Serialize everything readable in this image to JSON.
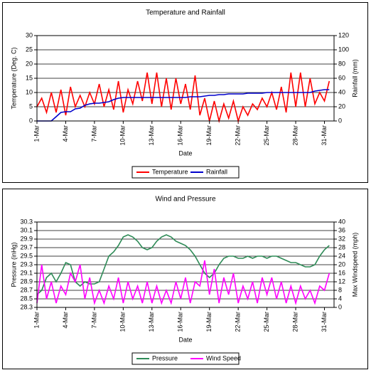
{
  "chart_data": [
    {
      "type": "line",
      "title": "Temperature and Rainfall",
      "x_label": "Date",
      "y_label": "Temperature (Deg. C)",
      "y2_label": "Rainfall (mm)",
      "x": [
        1,
        1.5,
        2,
        2.5,
        3,
        3.5,
        4,
        4.5,
        5,
        5.5,
        6,
        6.5,
        7,
        7.5,
        8,
        8.5,
        9,
        9.5,
        10,
        10.5,
        11,
        11.5,
        12,
        12.5,
        13,
        13.5,
        14,
        14.5,
        15,
        15.5,
        16,
        16.5,
        17,
        17.5,
        18,
        18.5,
        19,
        19.5,
        20,
        20.5,
        21,
        21.5,
        22,
        22.5,
        23,
        23.5,
        24,
        24.5,
        25,
        25.5,
        26,
        26.5,
        27,
        27.5,
        28,
        28.5,
        29,
        29.5,
        30,
        30.5,
        31,
        31.5
      ],
      "xlim": [
        1,
        32
      ],
      "xticks": [
        {
          "value": 1,
          "label": "1-Mar"
        },
        {
          "value": 4,
          "label": "4-Mar"
        },
        {
          "value": 7,
          "label": "7-Mar"
        },
        {
          "value": 10,
          "label": "10-Mar"
        },
        {
          "value": 13,
          "label": "13-Mar"
        },
        {
          "value": 16,
          "label": "16-Mar"
        },
        {
          "value": 19,
          "label": "19-Mar"
        },
        {
          "value": 22,
          "label": "22-Mar"
        },
        {
          "value": 25,
          "label": "25-Mar"
        },
        {
          "value": 28,
          "label": "28-Mar"
        },
        {
          "value": 31,
          "label": "31-Mar"
        }
      ],
      "ylim": [
        0,
        30
      ],
      "yticks": [
        0,
        5,
        10,
        15,
        20,
        25,
        30
      ],
      "y2lim": [
        0,
        120
      ],
      "y2ticks": [
        0,
        20,
        40,
        60,
        80,
        100,
        120
      ],
      "grid": true,
      "legend": "bottom",
      "series": [
        {
          "name": "Temperature",
          "color": "#ff0000",
          "axis": "y",
          "values": [
            5,
            8,
            3,
            10,
            3,
            11,
            2,
            12,
            5,
            9,
            5,
            10,
            6,
            13,
            5,
            11,
            4,
            14,
            3,
            11,
            6,
            14,
            7,
            17,
            6,
            17,
            5,
            15,
            4,
            15,
            6,
            13,
            4,
            16,
            2,
            8,
            0,
            7,
            0,
            6,
            1,
            7,
            0,
            5,
            2,
            6,
            4,
            8,
            5,
            10,
            4,
            12,
            3,
            17,
            5,
            17,
            5,
            15,
            6,
            10,
            7,
            14
          ]
        },
        {
          "name": "Rainfall",
          "color": "#0000cc",
          "axis": "y2",
          "values": [
            0,
            0,
            0,
            0,
            6,
            12,
            13,
            13,
            17,
            18,
            22,
            24,
            25,
            25,
            26,
            27,
            30,
            32,
            33,
            33,
            33,
            33,
            33,
            33,
            33,
            33,
            33,
            33,
            33,
            33,
            33,
            33,
            34,
            34,
            34,
            35,
            36,
            36,
            37,
            37,
            38,
            38,
            38,
            38,
            39,
            39,
            39,
            39,
            40,
            40,
            40,
            40,
            40,
            40,
            40,
            40,
            40,
            40,
            42,
            43,
            44,
            44
          ]
        }
      ]
    },
    {
      "type": "line",
      "title": "Wind and Pressure",
      "x_label": "Date",
      "y_label": "Pressure (inHg)",
      "y2_label": "Max Windspeed (mph)",
      "x": [
        1,
        1.5,
        2,
        2.5,
        3,
        3.5,
        4,
        4.5,
        5,
        5.5,
        6,
        6.5,
        7,
        7.5,
        8,
        8.5,
        9,
        9.5,
        10,
        10.5,
        11,
        11.5,
        12,
        12.5,
        13,
        13.5,
        14,
        14.5,
        15,
        15.5,
        16,
        16.5,
        17,
        17.5,
        18,
        18.5,
        19,
        19.5,
        20,
        20.5,
        21,
        21.5,
        22,
        22.5,
        23,
        23.5,
        24,
        24.5,
        25,
        25.5,
        26,
        26.5,
        27,
        27.5,
        28,
        28.5,
        29,
        29.5,
        30,
        30.5,
        31,
        31.5
      ],
      "xlim": [
        1,
        32
      ],
      "xticks": [
        {
          "value": 1,
          "label": "1-Mar"
        },
        {
          "value": 4,
          "label": "4-Mar"
        },
        {
          "value": 7,
          "label": "7-Mar"
        },
        {
          "value": 10,
          "label": "10-Mar"
        },
        {
          "value": 13,
          "label": "13-Mar"
        },
        {
          "value": 16,
          "label": "16-Mar"
        },
        {
          "value": 19,
          "label": "19-Mar"
        },
        {
          "value": 22,
          "label": "22-Mar"
        },
        {
          "value": 25,
          "label": "25-Mar"
        },
        {
          "value": 28,
          "label": "28-Mar"
        },
        {
          "value": 31,
          "label": "31-Mar"
        }
      ],
      "ylim": [
        28.3,
        30.3
      ],
      "yticks": [
        28.3,
        28.5,
        28.7,
        28.9,
        29.1,
        29.3,
        29.5,
        29.7,
        29.9,
        30.1,
        30.3
      ],
      "y2lim": [
        0,
        40
      ],
      "y2ticks": [
        0,
        4,
        8,
        12,
        16,
        20,
        24,
        28,
        32,
        36,
        40
      ],
      "grid": true,
      "legend": "bottom",
      "series": [
        {
          "name": "Pressure",
          "color": "#2e8b57",
          "axis": "y",
          "values": [
            28.6,
            28.7,
            29.0,
            29.1,
            28.9,
            29.1,
            29.35,
            29.3,
            28.9,
            28.8,
            28.9,
            28.85,
            28.85,
            28.9,
            29.2,
            29.5,
            29.6,
            29.75,
            29.95,
            30.0,
            29.95,
            29.85,
            29.7,
            29.65,
            29.7,
            29.85,
            29.95,
            30.0,
            29.95,
            29.85,
            29.8,
            29.75,
            29.65,
            29.5,
            29.3,
            29.1,
            29.0,
            29.1,
            29.3,
            29.45,
            29.5,
            29.5,
            29.45,
            29.45,
            29.5,
            29.45,
            29.5,
            29.5,
            29.45,
            29.5,
            29.5,
            29.45,
            29.4,
            29.35,
            29.35,
            29.3,
            29.25,
            29.25,
            29.3,
            29.5,
            29.65,
            29.75
          ]
        },
        {
          "name": "Wind Speed",
          "color": "#ff00ff",
          "axis": "y2",
          "values": [
            2,
            20,
            4,
            12,
            2,
            10,
            6,
            16,
            12,
            20,
            4,
            14,
            2,
            8,
            2,
            10,
            4,
            14,
            2,
            12,
            4,
            10,
            2,
            12,
            2,
            10,
            2,
            8,
            2,
            12,
            4,
            14,
            2,
            12,
            10,
            22,
            6,
            18,
            2,
            14,
            6,
            16,
            2,
            10,
            4,
            12,
            2,
            14,
            6,
            14,
            4,
            12,
            2,
            10,
            2,
            10,
            4,
            8,
            2,
            10,
            8,
            16
          ]
        }
      ]
    }
  ]
}
